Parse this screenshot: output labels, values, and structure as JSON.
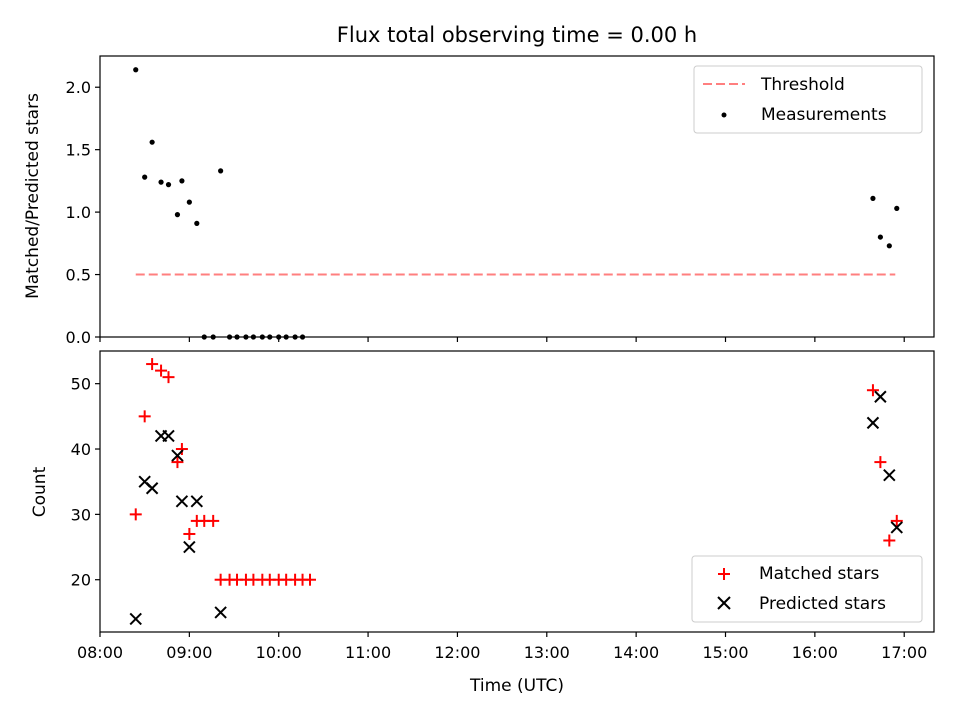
{
  "chart_data": [
    {
      "type": "scatter",
      "title": "Flux total observing time = 0.00 h",
      "ylabel": "Matched/Predicted stars",
      "ylim": [
        0,
        2.25
      ],
      "yticks": [
        "0.0",
        "0.5",
        "1.0",
        "1.5",
        "2.0"
      ],
      "legend": {
        "position": "top-right",
        "entries": [
          "Threshold",
          "Measurements"
        ]
      },
      "threshold": {
        "name": "Threshold",
        "value": 0.5,
        "x_start": "08:24",
        "x_end": "16:54",
        "color": "#ff7f7f"
      },
      "series": [
        {
          "name": "Measurements",
          "color": "#000000",
          "points": [
            [
              "08:24",
              2.14
            ],
            [
              "08:30",
              1.28
            ],
            [
              "08:35",
              1.56
            ],
            [
              "08:41",
              1.24
            ],
            [
              "08:46",
              1.22
            ],
            [
              "08:52",
              0.98
            ],
            [
              "08:55",
              1.25
            ],
            [
              "09:00",
              1.08
            ],
            [
              "09:05",
              0.91
            ],
            [
              "09:10",
              0.0
            ],
            [
              "09:16",
              0.0
            ],
            [
              "09:21",
              1.33
            ],
            [
              "09:27",
              0.0
            ],
            [
              "09:32",
              0.0
            ],
            [
              "09:38",
              0.0
            ],
            [
              "09:43",
              0.0
            ],
            [
              "09:49",
              0.0
            ],
            [
              "09:54",
              0.0
            ],
            [
              "10:00",
              0.0
            ],
            [
              "10:05",
              0.0
            ],
            [
              "10:11",
              0.0
            ],
            [
              "10:16",
              0.0
            ],
            [
              "16:39",
              1.11
            ],
            [
              "16:44",
              0.8
            ],
            [
              "16:50",
              0.73
            ],
            [
              "16:55",
              1.03
            ]
          ]
        }
      ]
    },
    {
      "type": "scatter",
      "xlabel": "Time (UTC)",
      "ylabel": "Count",
      "ylim": [
        12,
        55
      ],
      "yticks": [
        "20",
        "30",
        "40",
        "50"
      ],
      "xlim": [
        "08:00",
        "17:20"
      ],
      "xticks": [
        "08:00",
        "09:00",
        "10:00",
        "11:00",
        "12:00",
        "13:00",
        "14:00",
        "15:00",
        "16:00",
        "17:00"
      ],
      "legend": {
        "position": "bottom-right",
        "entries": [
          "Matched stars",
          "Predicted stars"
        ]
      },
      "series": [
        {
          "name": "Matched stars",
          "marker": "+",
          "color": "#ff0000",
          "points": [
            [
              "08:24",
              30
            ],
            [
              "08:30",
              45
            ],
            [
              "08:35",
              53
            ],
            [
              "08:41",
              52
            ],
            [
              "08:46",
              51
            ],
            [
              "08:52",
              38
            ],
            [
              "08:55",
              40
            ],
            [
              "09:00",
              27
            ],
            [
              "09:05",
              29
            ],
            [
              "09:10",
              29
            ],
            [
              "09:16",
              29
            ],
            [
              "09:21",
              20
            ],
            [
              "09:27",
              20
            ],
            [
              "09:32",
              20
            ],
            [
              "09:38",
              20
            ],
            [
              "09:43",
              20
            ],
            [
              "09:49",
              20
            ],
            [
              "09:54",
              20
            ],
            [
              "10:00",
              20
            ],
            [
              "10:05",
              20
            ],
            [
              "10:11",
              20
            ],
            [
              "10:16",
              20
            ],
            [
              "10:21",
              20
            ],
            [
              "16:39",
              49
            ],
            [
              "16:44",
              38
            ],
            [
              "16:50",
              26
            ],
            [
              "16:55",
              29
            ]
          ]
        },
        {
          "name": "Predicted stars",
          "marker": "x",
          "color": "#000000",
          "points": [
            [
              "08:24",
              14
            ],
            [
              "08:30",
              35
            ],
            [
              "08:35",
              34
            ],
            [
              "08:41",
              42
            ],
            [
              "08:46",
              42
            ],
            [
              "08:52",
              39
            ],
            [
              "08:55",
              32
            ],
            [
              "09:00",
              25
            ],
            [
              "09:05",
              32
            ],
            [
              "09:21",
              15
            ],
            [
              "16:39",
              44
            ],
            [
              "16:44",
              48
            ],
            [
              "16:50",
              36
            ],
            [
              "16:55",
              28
            ]
          ]
        }
      ]
    }
  ]
}
